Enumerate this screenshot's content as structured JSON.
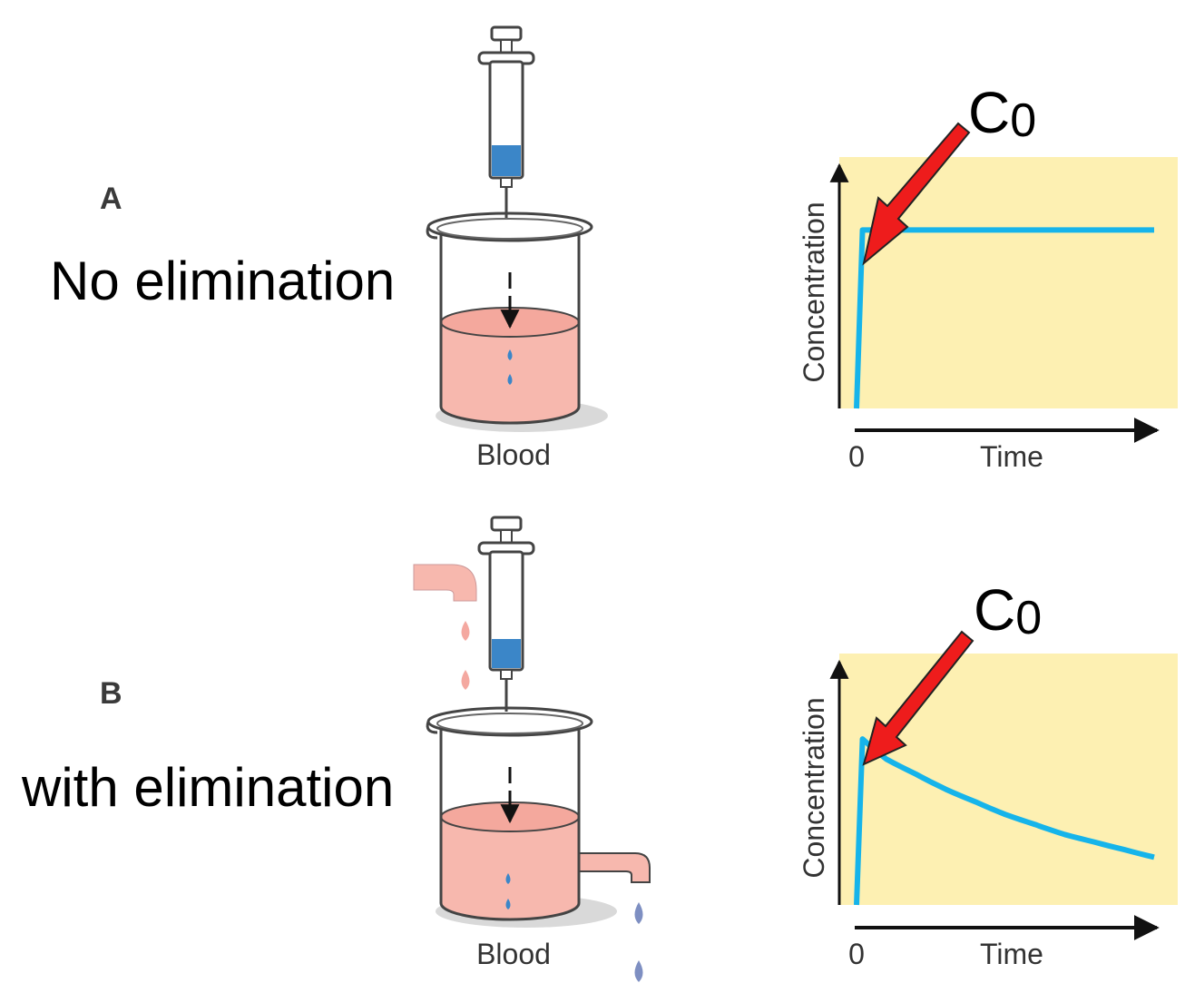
{
  "panels": [
    {
      "id": "A",
      "letter": "A",
      "caption": "No elimination",
      "beaker_label": "Blood",
      "elimination": false,
      "peak_label": {
        "main": "C",
        "sub": "0"
      }
    },
    {
      "id": "B",
      "letter": "B",
      "caption": "with elimination",
      "beaker_label": "Blood",
      "elimination": true,
      "peak_label": {
        "main": "C",
        "sub": "0"
      }
    }
  ],
  "chart_data": [
    {
      "type": "line",
      "xlabel": "Time",
      "ylabel": "Concentration",
      "x_ticks": [
        "0"
      ],
      "xlim": [
        0,
        10
      ],
      "ylim": [
        0,
        10
      ],
      "series": [
        {
          "color": "#16b4ea",
          "x": [
            0,
            0.2,
            10
          ],
          "y": [
            0,
            7.1,
            7.1
          ]
        }
      ],
      "annotation": {
        "text": "C0",
        "points_to": [
          0.2,
          7.1
        ]
      },
      "background": "#fdf0b2",
      "grid": false
    },
    {
      "type": "line",
      "xlabel": "Time",
      "ylabel": "Concentration",
      "x_ticks": [
        "0"
      ],
      "xlim": [
        0,
        10
      ],
      "ylim": [
        0,
        10
      ],
      "series": [
        {
          "color": "#16b4ea",
          "x": [
            0,
            0.2,
            1,
            2,
            3,
            4,
            5,
            6,
            7,
            8,
            9,
            10
          ],
          "y": [
            0,
            6.6,
            5.8,
            5.2,
            4.6,
            4.1,
            3.6,
            3.2,
            2.8,
            2.5,
            2.2,
            1.9
          ]
        }
      ],
      "annotation": {
        "text": "C0",
        "points_to": [
          0.2,
          6.6
        ]
      },
      "background": "#fdf0b2",
      "grid": false
    }
  ],
  "colors": {
    "blood": "#f7b8ae",
    "drug": "#3b86c8",
    "curve": "#16b4ea",
    "chart_bg": "#fdf0b2",
    "arrow": "#ee1c1c"
  }
}
